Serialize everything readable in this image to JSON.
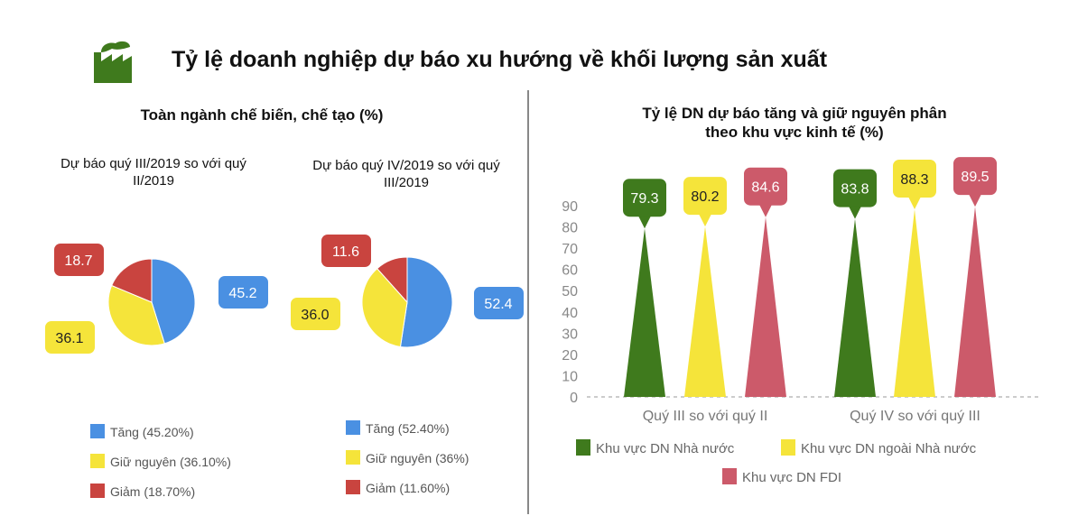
{
  "title": "Tỷ lệ doanh nghiệp dự báo xu hướng về khối lượng sản xuất",
  "icon": "factory-icon",
  "colors": {
    "green": "#3f7a1d",
    "yellow": "#f5e43a",
    "red": "#c9443f",
    "blue": "#4a90e2",
    "pink": "#cc5a6a"
  },
  "chart_data": [
    {
      "type": "pie",
      "title": "Toàn ngành chế biến, chế tạo (%)",
      "subtitle": "Dự báo quý III/2019 so với quý II/2019",
      "slices": [
        {
          "label": "Tăng (45.20%)",
          "value": 45.2,
          "data_label": "45.2"
        },
        {
          "label": "Giữ nguyên (36.10%)",
          "value": 36.1,
          "data_label": "36.1"
        },
        {
          "label": "Giảm (18.70%)",
          "value": 18.7,
          "data_label": "18.7"
        }
      ]
    },
    {
      "type": "pie",
      "title": "Toàn ngành chế biến, chế tạo (%)",
      "subtitle": "Dự báo quý IV/2019 so với quý III/2019",
      "slices": [
        {
          "label": "Tăng (52.40%)",
          "value": 52.4,
          "data_label": "52.4"
        },
        {
          "label": "Giữ nguyên (36%)",
          "value": 36.0,
          "data_label": "36.0"
        },
        {
          "label": "Giảm (11.60%)",
          "value": 11.6,
          "data_label": "11.6"
        }
      ]
    },
    {
      "type": "bar",
      "title": "Tỷ lệ DN dự báo tăng và giữ nguyên phân theo khu vực kinh tế (%)",
      "categories": [
        "Quý III so với quý II",
        "Quý IV so với quý III"
      ],
      "series": [
        {
          "name": "Khu vực DN Nhà nước",
          "values": [
            79.3,
            83.8
          ]
        },
        {
          "name": "Khu vực DN ngoài Nhà nước",
          "values": [
            80.2,
            88.3
          ]
        },
        {
          "name": "Khu vực DN FDI",
          "values": [
            84.6,
            89.5
          ]
        }
      ],
      "yticks": [
        "0",
        "10",
        "20",
        "30",
        "40",
        "50",
        "60",
        "70",
        "80",
        "90"
      ],
      "ylim": [
        0,
        90
      ],
      "legend": "bottom"
    }
  ]
}
